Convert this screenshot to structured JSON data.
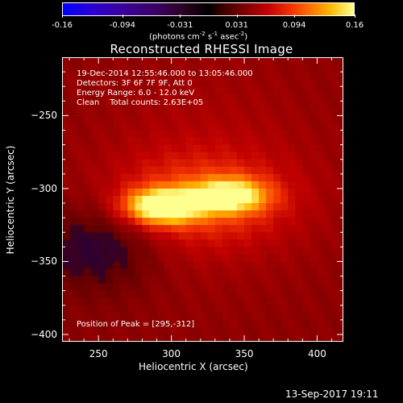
{
  "colorbar": {
    "ticks": [
      "-0.16",
      "-0.094",
      "-0.031",
      "0.031",
      "0.094",
      "0.16"
    ],
    "unit_main": "(photons cm",
    "unit_exp1": "-2",
    "unit_s": " s",
    "unit_exp2": "-1",
    "unit_asec": " asec",
    "unit_exp3": "-2",
    "unit_close": ")"
  },
  "chart_data": {
    "type": "heatmap",
    "title": "Reconstructed RHESSI Image",
    "xlabel": "Heliocentric X (arcsec)",
    "ylabel": "Heliocentric Y (arcsec)",
    "xlim": [
      225,
      418
    ],
    "ylim": [
      -405,
      -210
    ],
    "x_ticks": [
      250,
      300,
      350,
      400
    ],
    "y_ticks": [
      -250,
      -300,
      -350,
      -400
    ],
    "value_range": [
      -0.16,
      0.16
    ],
    "sources": [
      {
        "x": 295,
        "y": -312,
        "intensity": 0.16
      },
      {
        "x": 340,
        "y": -305,
        "intensity": 0.13
      }
    ],
    "annotations": [
      "19-Dec-2014 12:55:46.000 to 13:05:46.000",
      "Detectors: 3F 6F 7F 9F, Att 0",
      "Energy Range: 6.0 - 12.0 keV",
      "Clean    Total counts: 2.63E+05"
    ],
    "peak_label": "Position of Peak = [295,-312]"
  },
  "footer": {
    "date": "13-Sep-2017 19:11"
  }
}
